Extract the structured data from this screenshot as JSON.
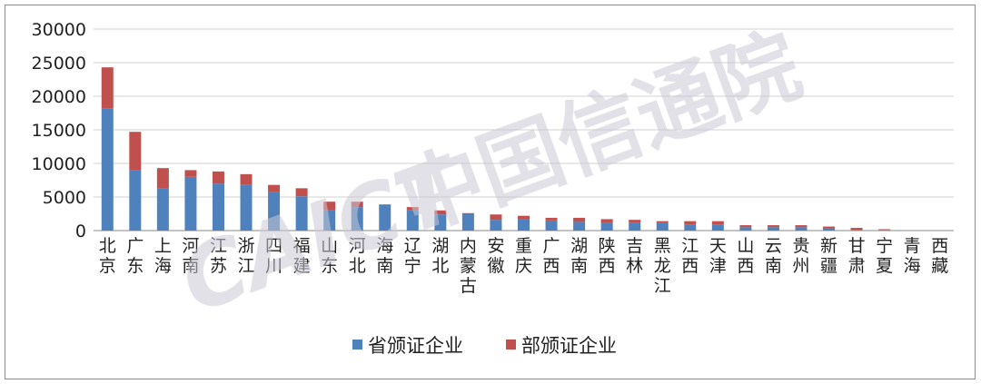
{
  "chart_data": {
    "type": "bar",
    "stacked": true,
    "title": "",
    "xlabel": "",
    "ylabel": "",
    "ylim": [
      0,
      30000
    ],
    "yticks": [
      0,
      5000,
      10000,
      15000,
      20000,
      25000,
      30000
    ],
    "grid": true,
    "legend_position": "bottom",
    "categories": [
      "北京",
      "广东",
      "上海",
      "河南",
      "江苏",
      "浙江",
      "四川",
      "福建",
      "山东",
      "河北",
      "海南",
      "辽宁",
      "湖北",
      "内蒙古",
      "安徽",
      "重庆",
      "广西",
      "湖南",
      "陕西",
      "吉林",
      "黑龙江",
      "江西",
      "天津",
      "山西",
      "云南",
      "贵州",
      "新疆",
      "甘肃",
      "宁夏",
      "青海",
      "西藏"
    ],
    "series": [
      {
        "name": "省颁证企业",
        "color": "#4f81bd",
        "values": [
          18200,
          9000,
          6300,
          8000,
          7000,
          6800,
          5800,
          5100,
          3100,
          3500,
          3800,
          3000,
          2400,
          2500,
          1600,
          1700,
          1500,
          1300,
          1100,
          1200,
          1100,
          900,
          900,
          500,
          500,
          500,
          400,
          100,
          100,
          0,
          0
        ]
      },
      {
        "name": "部颁证企业",
        "color": "#c0504d",
        "values": [
          6100,
          5700,
          3000,
          1000,
          1800,
          1600,
          1000,
          1200,
          1200,
          800,
          100,
          500,
          600,
          100,
          800,
          500,
          400,
          600,
          600,
          400,
          300,
          500,
          500,
          300,
          300,
          300,
          200,
          300,
          100,
          0,
          0
        ]
      }
    ]
  },
  "watermark": {
    "text": "中国信通院",
    "prefix": "CAICT"
  }
}
